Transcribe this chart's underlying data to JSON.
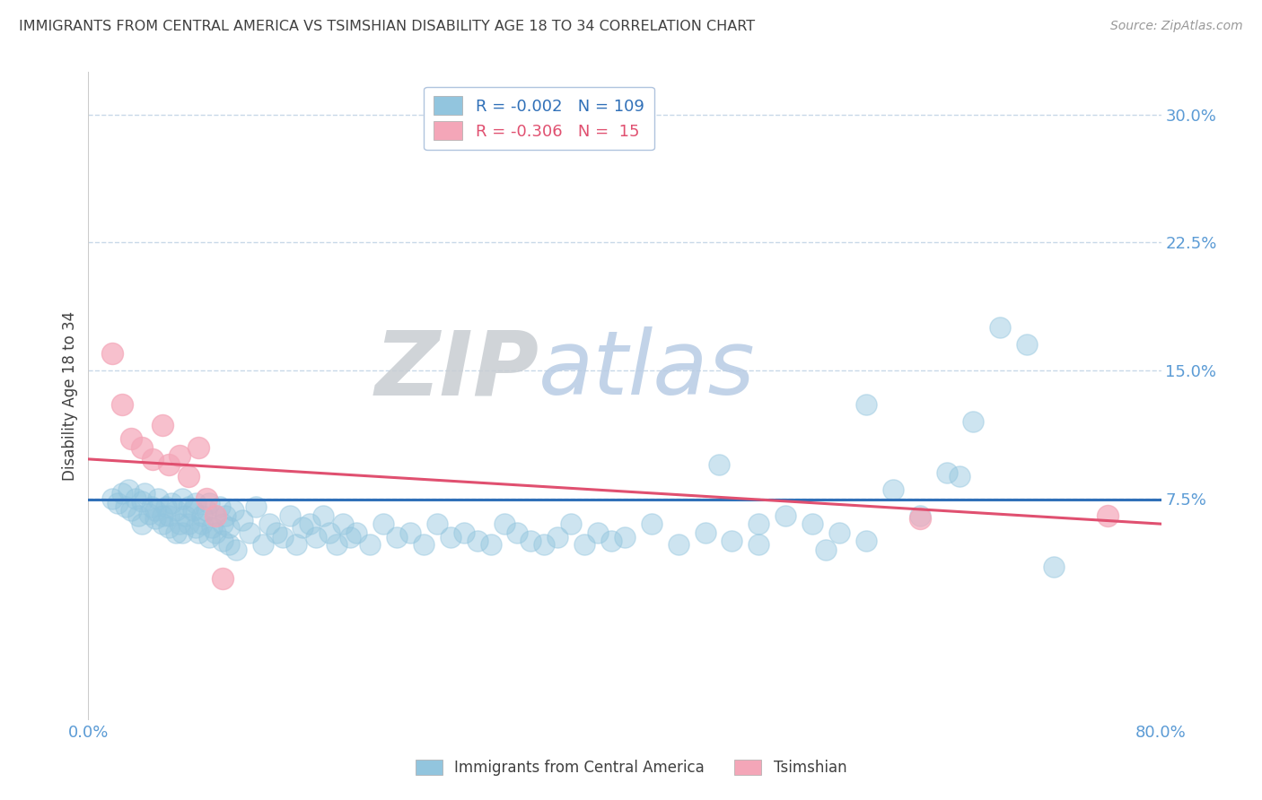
{
  "title": "IMMIGRANTS FROM CENTRAL AMERICA VS TSIMSHIAN DISABILITY AGE 18 TO 34 CORRELATION CHART",
  "source": "Source: ZipAtlas.com",
  "ylabel": "Disability Age 18 to 34",
  "watermark_zip": "ZIP",
  "watermark_atlas": "atlas",
  "xlim": [
    0.0,
    0.8
  ],
  "ylim": [
    -0.055,
    0.325
  ],
  "yticks": [
    0.075,
    0.15,
    0.225,
    0.3
  ],
  "ytick_labels": [
    "7.5%",
    "15.0%",
    "22.5%",
    "30.0%"
  ],
  "xticks": [
    0.0,
    0.1,
    0.2,
    0.3,
    0.4,
    0.5,
    0.6,
    0.7,
    0.8
  ],
  "xtick_labels": [
    "0.0%",
    "",
    "",
    "",
    "",
    "",
    "",
    "",
    "80.0%"
  ],
  "blue_R": -0.002,
  "blue_N": 109,
  "pink_R": -0.306,
  "pink_N": 15,
  "blue_color": "#92c5de",
  "pink_color": "#f4a6b8",
  "blue_line_color": "#3070b8",
  "pink_line_color": "#e05070",
  "title_color": "#404040",
  "axis_label_color": "#5b9bd5",
  "grid_color": "#c8d8e8",
  "background_color": "#ffffff",
  "legend_text_blue": "#3070b8",
  "legend_text_pink": "#e05070",
  "blue_scatter_x": [
    0.018,
    0.022,
    0.025,
    0.028,
    0.03,
    0.032,
    0.035,
    0.037,
    0.04,
    0.04,
    0.042,
    0.045,
    0.047,
    0.05,
    0.05,
    0.052,
    0.055,
    0.055,
    0.058,
    0.06,
    0.06,
    0.062,
    0.065,
    0.065,
    0.068,
    0.07,
    0.07,
    0.072,
    0.075,
    0.075,
    0.078,
    0.08,
    0.08,
    0.082,
    0.085,
    0.085,
    0.088,
    0.09,
    0.09,
    0.092,
    0.095,
    0.095,
    0.098,
    0.1,
    0.1,
    0.102,
    0.105,
    0.105,
    0.108,
    0.11,
    0.115,
    0.12,
    0.125,
    0.13,
    0.135,
    0.14,
    0.145,
    0.15,
    0.155,
    0.16,
    0.165,
    0.17,
    0.175,
    0.18,
    0.185,
    0.19,
    0.195,
    0.2,
    0.21,
    0.22,
    0.23,
    0.24,
    0.25,
    0.26,
    0.27,
    0.28,
    0.29,
    0.3,
    0.31,
    0.32,
    0.33,
    0.34,
    0.35,
    0.36,
    0.37,
    0.38,
    0.39,
    0.4,
    0.42,
    0.44,
    0.46,
    0.48,
    0.5,
    0.52,
    0.54,
    0.56,
    0.58,
    0.6,
    0.62,
    0.64,
    0.66,
    0.68,
    0.7,
    0.58,
    0.65,
    0.47,
    0.5,
    0.55,
    0.72
  ],
  "blue_scatter_y": [
    0.075,
    0.072,
    0.078,
    0.07,
    0.08,
    0.068,
    0.075,
    0.065,
    0.073,
    0.06,
    0.078,
    0.066,
    0.07,
    0.063,
    0.068,
    0.075,
    0.06,
    0.065,
    0.07,
    0.058,
    0.065,
    0.072,
    0.055,
    0.068,
    0.06,
    0.075,
    0.055,
    0.065,
    0.07,
    0.06,
    0.068,
    0.058,
    0.072,
    0.055,
    0.065,
    0.06,
    0.068,
    0.052,
    0.072,
    0.058,
    0.065,
    0.055,
    0.07,
    0.05,
    0.06,
    0.065,
    0.048,
    0.058,
    0.068,
    0.045,
    0.062,
    0.055,
    0.07,
    0.048,
    0.06,
    0.055,
    0.052,
    0.065,
    0.048,
    0.058,
    0.06,
    0.052,
    0.065,
    0.055,
    0.048,
    0.06,
    0.052,
    0.055,
    0.048,
    0.06,
    0.052,
    0.055,
    0.048,
    0.06,
    0.052,
    0.055,
    0.05,
    0.048,
    0.06,
    0.055,
    0.05,
    0.048,
    0.052,
    0.06,
    0.048,
    0.055,
    0.05,
    0.052,
    0.06,
    0.048,
    0.055,
    0.05,
    0.048,
    0.065,
    0.06,
    0.055,
    0.05,
    0.08,
    0.065,
    0.09,
    0.12,
    0.175,
    0.165,
    0.13,
    0.088,
    0.095,
    0.06,
    0.045,
    0.035
  ],
  "pink_scatter_x": [
    0.018,
    0.025,
    0.032,
    0.04,
    0.048,
    0.055,
    0.06,
    0.068,
    0.075,
    0.082,
    0.088,
    0.095,
    0.1,
    0.62,
    0.76
  ],
  "pink_scatter_y": [
    0.16,
    0.13,
    0.11,
    0.105,
    0.098,
    0.118,
    0.095,
    0.1,
    0.088,
    0.105,
    0.075,
    0.065,
    0.028,
    0.063,
    0.065
  ],
  "blue_trend_y_start": 0.0745,
  "blue_trend_y_end": 0.0745,
  "pink_trend_y_start": 0.098,
  "pink_trend_y_end": 0.06
}
